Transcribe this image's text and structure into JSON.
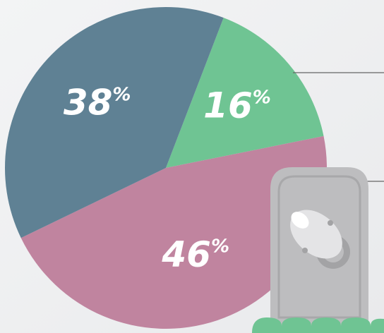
{
  "chart_data": {
    "type": "pie",
    "values": [
      16,
      46,
      38
    ],
    "value_labels": [
      "16%",
      "46%",
      "38%"
    ],
    "colors": [
      "#6fc493",
      "#c0849f",
      "#5f8194"
    ]
  }
}
